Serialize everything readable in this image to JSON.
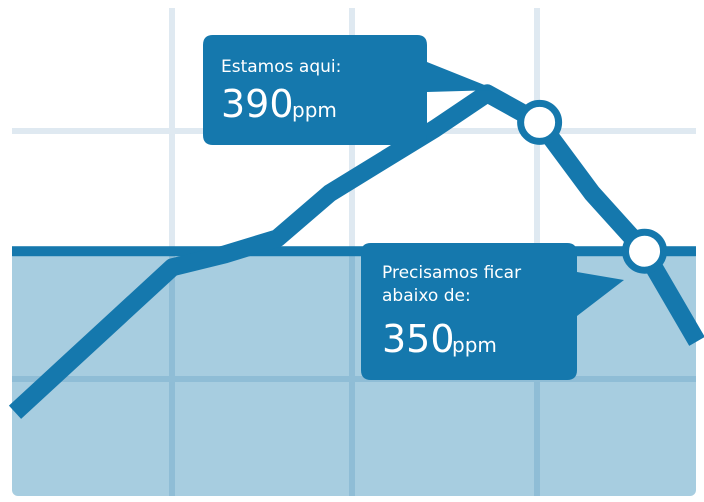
{
  "colors": {
    "background": "#ffffff",
    "grid": "#dfe9f1",
    "below_zone": "#a7cde0",
    "below_zone_grid": "#8fbdd6",
    "line": "#1578ad",
    "callout": "#1578ad",
    "marker_fill": "#ffffff"
  },
  "callouts": {
    "current": {
      "label": "Estamos aqui:",
      "value": "390",
      "unit": "ppm"
    },
    "target": {
      "label_line1": "Precisamos ficar",
      "label_line2": "abaixo de:",
      "value": "350",
      "unit": "ppm"
    }
  },
  "chart_data": {
    "type": "line",
    "title": "",
    "xlabel": "",
    "ylabel": "",
    "y_unit": "ppm",
    "x": [
      0,
      1,
      2,
      3,
      4,
      5,
      6,
      7,
      8,
      9,
      10,
      11,
      12,
      13
    ],
    "series": [
      {
        "values": [
          300,
          315,
          330,
          345,
          349,
          354,
          368,
          378,
          388,
          399,
          390,
          368,
          350,
          322
        ]
      }
    ],
    "reference_line": {
      "value": 350,
      "label": "350 ppm",
      "fill_below": true
    },
    "highlighted_points": [
      {
        "x": 10,
        "y": 390,
        "label": "390 ppm"
      },
      {
        "x": 12,
        "y": 350,
        "label": "350 ppm"
      }
    ],
    "ylim": [
      274,
      428
    ],
    "xlim": [
      0,
      13
    ],
    "grid": true
  }
}
